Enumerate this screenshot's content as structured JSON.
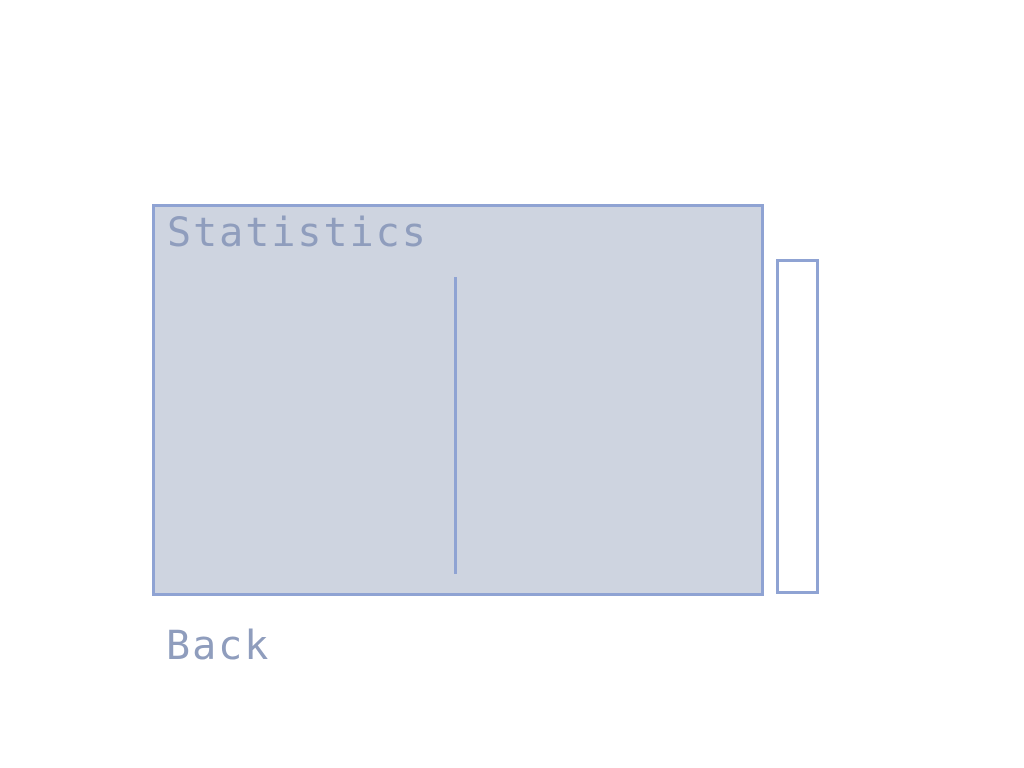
{
  "stats_panel": {
    "title": "Statistics"
  },
  "navigation": {
    "back_label": "Back"
  },
  "colors": {
    "panel_background": "#ced4e0",
    "border": "#8fa3d3",
    "text": "#8f9dbd",
    "page_background": "#ffffff"
  }
}
